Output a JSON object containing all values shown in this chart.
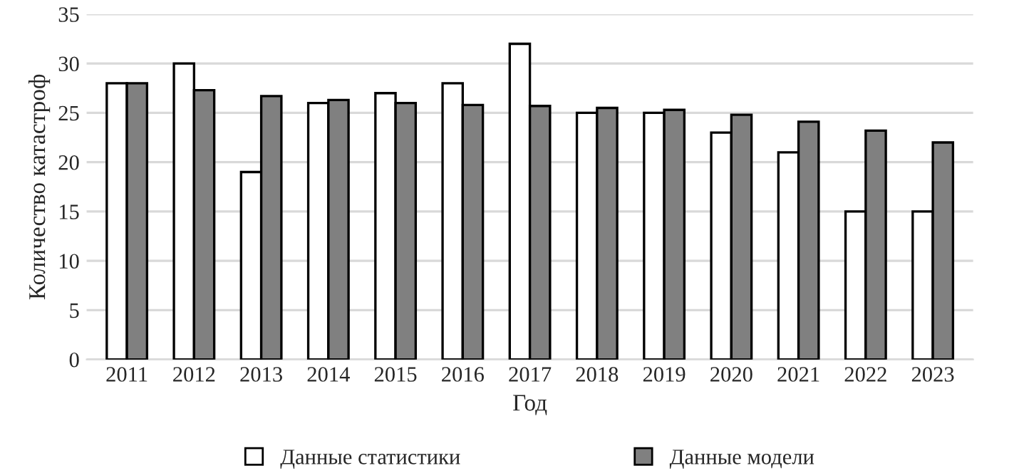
{
  "chart_data": {
    "type": "bar",
    "xlabel": "Год",
    "ylabel": "Количество катастроф",
    "categories": [
      "2011",
      "2012",
      "2013",
      "2014",
      "2015",
      "2016",
      "2017",
      "2018",
      "2019",
      "2020",
      "2021",
      "2022",
      "2023"
    ],
    "series": [
      {
        "name": "Данные статистики",
        "color": "#ffffff",
        "values": [
          28,
          30,
          19,
          26,
          27,
          28,
          32,
          25,
          25,
          23,
          21,
          15,
          15
        ]
      },
      {
        "name": "Данные модели",
        "color": "#808080",
        "values": [
          28,
          27.3,
          26.7,
          26.3,
          26,
          25.8,
          25.7,
          25.5,
          25.3,
          24.8,
          24.1,
          23.2,
          22
        ]
      }
    ],
    "ylim": [
      0,
      35
    ],
    "yticks": [
      0,
      5,
      10,
      15,
      20,
      25,
      30,
      35
    ],
    "grid": "y",
    "legend": "bottom"
  }
}
